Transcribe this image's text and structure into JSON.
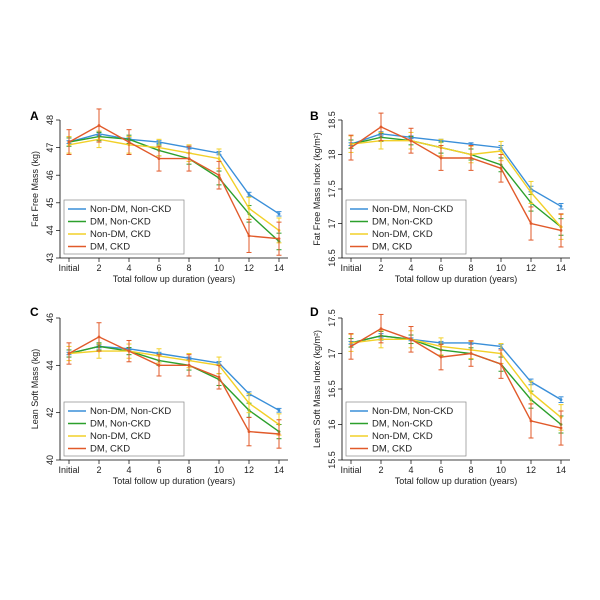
{
  "figure": {
    "legend_entries": [
      "Non-DM, Non-CKD",
      "DM, Non-CKD",
      "Non-DM, CKD",
      "DM, CKD"
    ]
  },
  "chart_data": [
    {
      "panel": "A",
      "type": "line",
      "categories": [
        "Initial",
        "2",
        "4",
        "6",
        "8",
        "10",
        "12",
        "14"
      ],
      "xlabel": "Total follow up duration (years)",
      "ylabel": "Fat Free Mass (kg)",
      "ylim": [
        43,
        48
      ],
      "yticks": [
        43,
        44,
        45,
        46,
        47,
        48
      ],
      "legend_position": "bottom-left",
      "colors": [
        "#3a8fd9",
        "#2ca02c",
        "#f2d028",
        "#e15a2a"
      ],
      "series": [
        {
          "name": "Non-DM, Non-CKD",
          "values": [
            47.2,
            47.5,
            47.3,
            47.2,
            47.0,
            46.8,
            45.3,
            44.6
          ],
          "errors": [
            0.05,
            0.06,
            0.05,
            0.05,
            0.05,
            0.06,
            0.08,
            0.08
          ]
        },
        {
          "name": "DM, Non-CKD",
          "values": [
            47.2,
            47.4,
            47.3,
            46.9,
            46.6,
            45.9,
            44.6,
            43.6
          ],
          "errors": [
            0.15,
            0.15,
            0.15,
            0.2,
            0.2,
            0.25,
            0.3,
            0.3
          ]
        },
        {
          "name": "Non-DM, CKD",
          "values": [
            47.1,
            47.3,
            47.1,
            47.0,
            46.8,
            46.6,
            44.8,
            44.0
          ],
          "errors": [
            0.3,
            0.3,
            0.3,
            0.3,
            0.3,
            0.35,
            0.4,
            0.45
          ]
        },
        {
          "name": "DM, CKD",
          "values": [
            47.2,
            47.8,
            47.2,
            46.6,
            46.6,
            46.0,
            43.8,
            43.7
          ],
          "errors": [
            0.45,
            0.6,
            0.45,
            0.45,
            0.45,
            0.5,
            0.6,
            0.6
          ]
        }
      ]
    },
    {
      "panel": "B",
      "type": "line",
      "categories": [
        "Initial",
        "2",
        "4",
        "6",
        "8",
        "10",
        "12",
        "14"
      ],
      "xlabel": "Total follow up duration (years)",
      "ylabel": "Fat Free Mass Index (kg/m²)",
      "ylim": [
        16.5,
        18.5
      ],
      "yticks": [
        16.5,
        17,
        17.5,
        18,
        18.5
      ],
      "legend_position": "bottom-left",
      "colors": [
        "#3a8fd9",
        "#2ca02c",
        "#f2d028",
        "#e15a2a"
      ],
      "series": [
        {
          "name": "Non-DM, Non-CKD",
          "values": [
            18.15,
            18.3,
            18.25,
            18.2,
            18.15,
            18.1,
            17.5,
            17.25
          ],
          "errors": [
            0.02,
            0.03,
            0.02,
            0.02,
            0.02,
            0.03,
            0.04,
            0.04
          ]
        },
        {
          "name": "DM, Non-CKD",
          "values": [
            18.15,
            18.25,
            18.2,
            18.1,
            18.0,
            17.85,
            17.3,
            16.95
          ],
          "errors": [
            0.06,
            0.06,
            0.06,
            0.08,
            0.08,
            0.1,
            0.12,
            0.12
          ]
        },
        {
          "name": "Non-DM, CKD",
          "values": [
            18.15,
            18.2,
            18.2,
            18.1,
            18.0,
            18.05,
            17.45,
            16.95
          ],
          "errors": [
            0.12,
            0.12,
            0.12,
            0.12,
            0.12,
            0.14,
            0.16,
            0.18
          ]
        },
        {
          "name": "DM, CKD",
          "values": [
            18.1,
            18.4,
            18.2,
            17.95,
            17.95,
            17.8,
            17.0,
            16.9
          ],
          "errors": [
            0.18,
            0.2,
            0.18,
            0.18,
            0.18,
            0.2,
            0.24,
            0.24
          ]
        }
      ]
    },
    {
      "panel": "C",
      "type": "line",
      "categories": [
        "Initial",
        "2",
        "4",
        "6",
        "8",
        "10",
        "12",
        "14"
      ],
      "xlabel": "Total follow up duration (years)",
      "ylabel": "Lean Soft Mass (kg)",
      "ylim": [
        40,
        46
      ],
      "yticks": [
        40,
        42,
        44,
        46
      ],
      "legend_position": "bottom-left",
      "colors": [
        "#3a8fd9",
        "#2ca02c",
        "#f2d028",
        "#e15a2a"
      ],
      "series": [
        {
          "name": "Non-DM, Non-CKD",
          "values": [
            44.5,
            44.8,
            44.7,
            44.5,
            44.3,
            44.1,
            42.8,
            42.1
          ],
          "errors": [
            0.05,
            0.06,
            0.05,
            0.05,
            0.05,
            0.06,
            0.08,
            0.08
          ]
        },
        {
          "name": "DM, Non-CKD",
          "values": [
            44.5,
            44.8,
            44.6,
            44.2,
            44.0,
            43.4,
            42.1,
            41.2
          ],
          "errors": [
            0.15,
            0.15,
            0.15,
            0.2,
            0.2,
            0.25,
            0.3,
            0.3
          ]
        },
        {
          "name": "Non-DM, CKD",
          "values": [
            44.5,
            44.6,
            44.6,
            44.4,
            44.2,
            44.0,
            42.4,
            41.5
          ],
          "errors": [
            0.3,
            0.3,
            0.3,
            0.3,
            0.3,
            0.35,
            0.4,
            0.45
          ]
        },
        {
          "name": "DM, CKD",
          "values": [
            44.5,
            45.2,
            44.6,
            44.0,
            44.0,
            43.5,
            41.2,
            41.1
          ],
          "errors": [
            0.45,
            0.6,
            0.45,
            0.45,
            0.45,
            0.5,
            0.6,
            0.6
          ]
        }
      ]
    },
    {
      "panel": "D",
      "type": "line",
      "categories": [
        "Initial",
        "2",
        "4",
        "6",
        "8",
        "10",
        "12",
        "14"
      ],
      "xlabel": "Total follow up duration (years)",
      "ylabel": "Lean Soft Mass Index (kg/m²)",
      "ylim": [
        15.5,
        17.5
      ],
      "yticks": [
        15.5,
        16,
        16.5,
        17,
        17.5
      ],
      "legend_position": "bottom-left",
      "colors": [
        "#3a8fd9",
        "#2ca02c",
        "#f2d028",
        "#e15a2a"
      ],
      "series": [
        {
          "name": "Non-DM, Non-CKD",
          "values": [
            17.15,
            17.25,
            17.2,
            17.15,
            17.15,
            17.1,
            16.6,
            16.35
          ],
          "errors": [
            0.02,
            0.03,
            0.02,
            0.02,
            0.02,
            0.03,
            0.04,
            0.04
          ]
        },
        {
          "name": "DM, Non-CKD",
          "values": [
            17.15,
            17.25,
            17.2,
            17.05,
            17.0,
            16.85,
            16.35,
            16.0
          ],
          "errors": [
            0.06,
            0.06,
            0.06,
            0.08,
            0.08,
            0.1,
            0.12,
            0.12
          ]
        },
        {
          "name": "Non-DM, CKD",
          "values": [
            17.15,
            17.2,
            17.2,
            17.1,
            17.05,
            17.0,
            16.45,
            16.1
          ],
          "errors": [
            0.12,
            0.12,
            0.12,
            0.12,
            0.12,
            0.14,
            0.16,
            0.18
          ]
        },
        {
          "name": "DM, CKD",
          "values": [
            17.1,
            17.35,
            17.2,
            16.95,
            17.0,
            16.85,
            16.05,
            15.95
          ],
          "errors": [
            0.18,
            0.2,
            0.18,
            0.18,
            0.18,
            0.2,
            0.24,
            0.24
          ]
        }
      ]
    }
  ]
}
